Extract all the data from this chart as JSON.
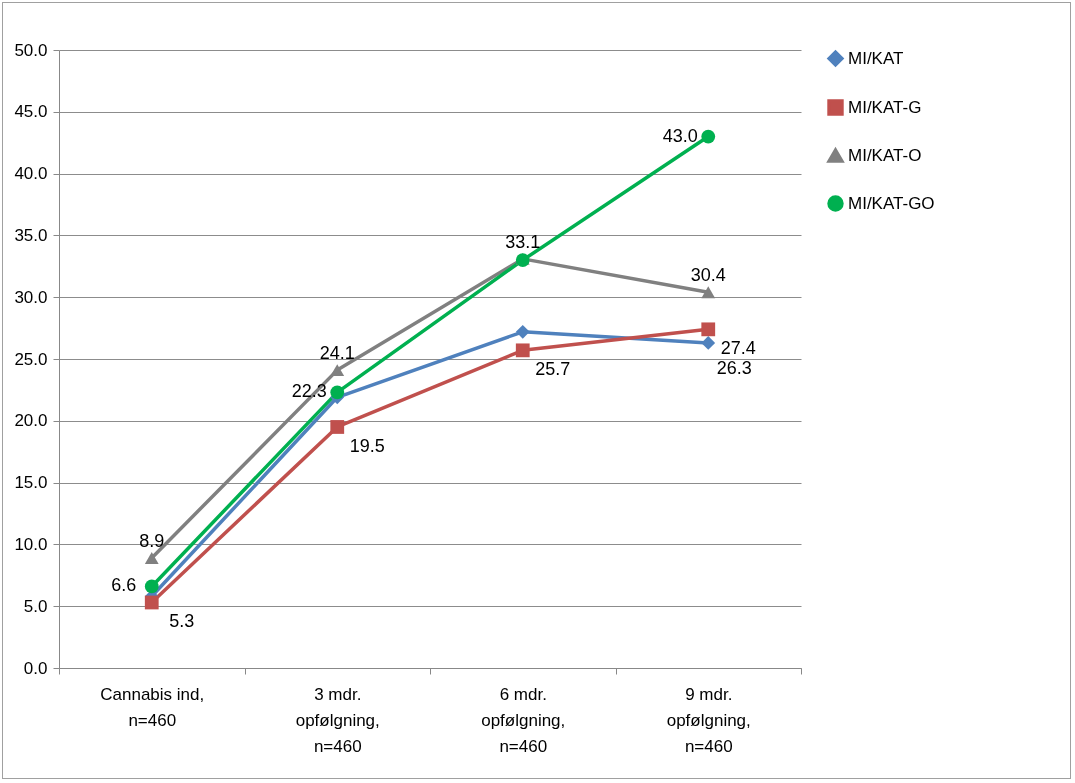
{
  "chart_data": {
    "type": "line",
    "categories": [
      "Cannabis ind,\nn=460",
      "3 mdr.\nopfølgning,\nn=460",
      "6 mdr.\nopfølgning,\nn=460",
      "9 mdr.\nopfølgning,\nn=460"
    ],
    "series": [
      {
        "name": "MI/KAT",
        "color": "#4f81bd",
        "marker": "diamond",
        "values": [
          5.8,
          21.9,
          27.2,
          26.3
        ],
        "value_labels": [
          null,
          null,
          null,
          "26.3"
        ]
      },
      {
        "name": "MI/KAT-G",
        "color": "#c0504d",
        "marker": "square",
        "values": [
          5.3,
          19.5,
          25.7,
          27.4
        ],
        "value_labels": [
          "5.3",
          "19.5",
          "25.7",
          "27.4"
        ]
      },
      {
        "name": "MI/KAT-O",
        "color": "#808080",
        "marker": "triangle",
        "values": [
          8.9,
          24.1,
          33.1,
          30.4
        ],
        "value_labels": [
          "8.9",
          "24.1",
          "33.1",
          "30.4"
        ]
      },
      {
        "name": "MI/KAT-GO",
        "color": "#00b050",
        "marker": "circle",
        "values": [
          6.6,
          22.3,
          33.0,
          43.0
        ],
        "value_labels": [
          "6.6",
          "22.3",
          null,
          "43.0"
        ]
      }
    ],
    "ylim": [
      0,
      50
    ],
    "yticks": [
      {
        "value": 0,
        "label": "0.0"
      },
      {
        "value": 5,
        "label": "5.0"
      },
      {
        "value": 10,
        "label": "10.0"
      },
      {
        "value": 15,
        "label": "15.0"
      },
      {
        "value": 20,
        "label": "20.0"
      },
      {
        "value": 25,
        "label": "25.0"
      },
      {
        "value": 30,
        "label": "30.0"
      },
      {
        "value": 35,
        "label": "35.0"
      },
      {
        "value": 40,
        "label": "40.0"
      },
      {
        "value": 45,
        "label": "45.0"
      },
      {
        "value": 50,
        "label": "50.0"
      }
    ],
    "grid": "y",
    "legend": "right",
    "line_style": "solid"
  }
}
